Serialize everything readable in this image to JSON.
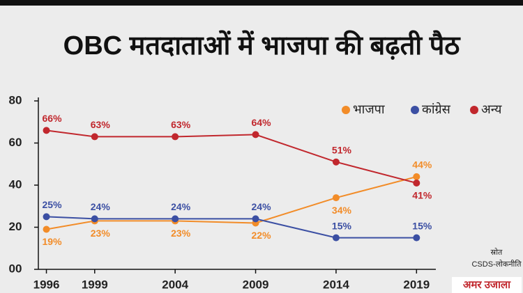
{
  "title": "OBC मतदाताओं में भाजपा की बढ़ती पैठ",
  "chart_data": {
    "type": "line",
    "x": [
      1996,
      1999,
      2004,
      2009,
      2014,
      2019
    ],
    "xlim": [
      1995.5,
      2020.2
    ],
    "xticks": [
      1996,
      1999,
      2004,
      2009,
      2014,
      2019
    ],
    "ylim": [
      0,
      80
    ],
    "yticks": [
      {
        "value": 0,
        "label": "00"
      },
      20,
      40,
      60,
      80
    ],
    "legend": "top-right",
    "series": [
      {
        "name": "भाजपा",
        "color": "#f28c28",
        "values": [
          19,
          23,
          23,
          22,
          34,
          44
        ],
        "value_labels": [
          "19%",
          "23%",
          "23%",
          "22%",
          "34%",
          "44%"
        ]
      },
      {
        "name": "कांग्रेस",
        "color": "#3b4fa3",
        "values": [
          25,
          24,
          24,
          24,
          15,
          15
        ],
        "value_labels": [
          "25%",
          "24%",
          "24%",
          "24%",
          "15%",
          "15%"
        ]
      },
      {
        "name": "अन्य",
        "color": "#c1272d",
        "values": [
          66,
          63,
          63,
          64,
          51,
          41
        ],
        "value_labels": [
          "66%",
          "63%",
          "63%",
          "64%",
          "51%",
          "41%"
        ]
      }
    ],
    "source_label": "स्रोत",
    "source": "CSDS-लोकनीति"
  },
  "logo": "अमर उजाला"
}
